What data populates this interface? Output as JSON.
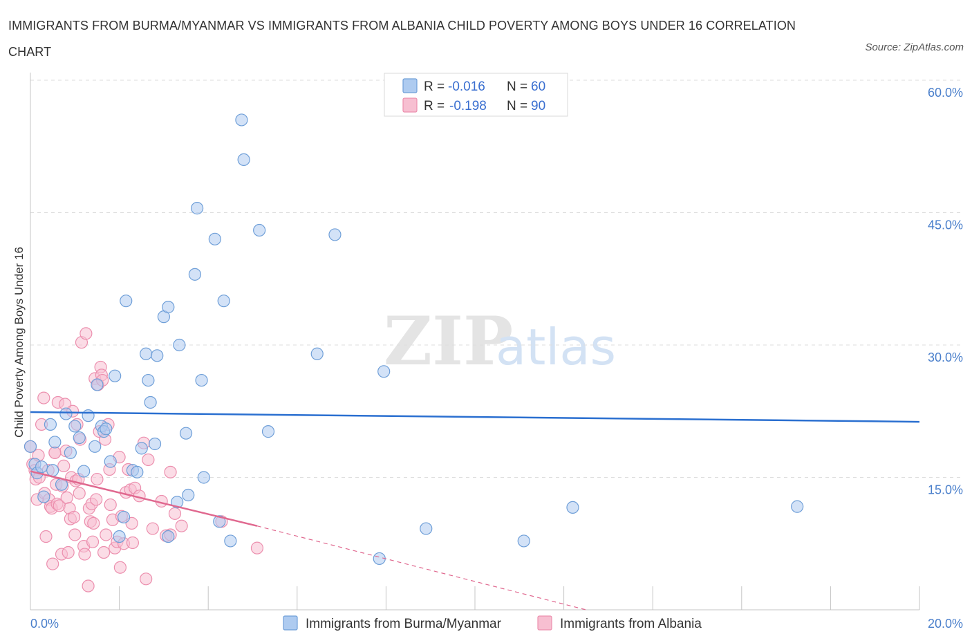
{
  "title": "IMMIGRANTS FROM BURMA/MYANMAR VS IMMIGRANTS FROM ALBANIA CHILD POVERTY AMONG BOYS UNDER 16 CORRELATION CHART",
  "source": "Source: ZipAtlas.com",
  "watermark": {
    "zip": "ZIP",
    "atlas": "atlas"
  },
  "colors": {
    "burma_fill": "#aecbf0",
    "burma_stroke": "#6f9fd8",
    "burma_line": "#2a6fd0",
    "albania_fill": "#f7bfd1",
    "albania_stroke": "#ec8fae",
    "albania_line": "#e0688f",
    "grid": "#dedede",
    "tick_text": "#4a7fcb"
  },
  "legend": {
    "rows": [
      {
        "r_label": "R = ",
        "r_value": "-0.016",
        "n_label": "N = ",
        "n_value": "60"
      },
      {
        "r_label": "R = ",
        "r_value": "-0.198",
        "n_label": "N = ",
        "n_value": "90"
      }
    ]
  },
  "chart_data": {
    "type": "scatter",
    "title": "IMMIGRANTS FROM BURMA/MYANMAR VS IMMIGRANTS FROM ALBANIA CHILD POVERTY AMONG BOYS UNDER 16 CORRELATION CHART",
    "xlabel": "",
    "ylabel": "Child Poverty Among Boys Under 16",
    "xlim": [
      0,
      20
    ],
    "ylim": [
      0,
      60
    ],
    "x_tick_labels": [
      "0.0%",
      "20.0%"
    ],
    "y_ticks": [
      15,
      30,
      45,
      60
    ],
    "y_tick_labels": [
      "15.0%",
      "30.0%",
      "45.0%",
      "60.0%"
    ],
    "grid": true,
    "legend_position": "top-center",
    "series": [
      {
        "name": "Immigrants from Burma/Myanmar",
        "R": -0.016,
        "N": 60,
        "trend": {
          "x": [
            0,
            20
          ],
          "y": [
            22.4,
            21.3
          ],
          "dashed_extension": false
        },
        "points": [
          [
            0.0,
            18.5
          ],
          [
            0.1,
            16.5
          ],
          [
            0.15,
            15.5
          ],
          [
            0.25,
            16.2
          ],
          [
            0.3,
            12.8
          ],
          [
            0.45,
            21.0
          ],
          [
            0.5,
            15.8
          ],
          [
            0.55,
            19.0
          ],
          [
            0.7,
            14.2
          ],
          [
            0.8,
            22.2
          ],
          [
            0.9,
            17.8
          ],
          [
            1.0,
            20.8
          ],
          [
            1.1,
            19.5
          ],
          [
            1.2,
            15.7
          ],
          [
            1.3,
            22.0
          ],
          [
            1.45,
            18.5
          ],
          [
            1.5,
            25.5
          ],
          [
            1.6,
            20.8
          ],
          [
            1.65,
            20.2
          ],
          [
            1.8,
            16.8
          ],
          [
            1.9,
            26.5
          ],
          [
            2.0,
            8.3
          ],
          [
            2.1,
            10.5
          ],
          [
            2.15,
            35.0
          ],
          [
            2.3,
            15.8
          ],
          [
            2.4,
            15.6
          ],
          [
            2.5,
            18.3
          ],
          [
            2.6,
            29.0
          ],
          [
            2.65,
            26.0
          ],
          [
            2.7,
            23.5
          ],
          [
            2.8,
            18.8
          ],
          [
            2.85,
            28.8
          ],
          [
            3.0,
            33.2
          ],
          [
            3.1,
            34.3
          ],
          [
            3.1,
            8.3
          ],
          [
            3.3,
            12.2
          ],
          [
            3.35,
            30.0
          ],
          [
            3.5,
            20.0
          ],
          [
            3.55,
            13.0
          ],
          [
            3.7,
            38.0
          ],
          [
            3.75,
            45.5
          ],
          [
            3.85,
            26.0
          ],
          [
            3.9,
            15.0
          ],
          [
            4.15,
            42.0
          ],
          [
            4.25,
            10.0
          ],
          [
            4.35,
            35.0
          ],
          [
            4.5,
            7.8
          ],
          [
            4.75,
            55.5
          ],
          [
            4.8,
            51.0
          ],
          [
            5.15,
            43.0
          ],
          [
            5.35,
            20.2
          ],
          [
            6.45,
            29.0
          ],
          [
            6.85,
            42.5
          ],
          [
            7.85,
            5.8
          ],
          [
            7.95,
            27.0
          ],
          [
            8.9,
            9.2
          ],
          [
            11.1,
            7.8
          ],
          [
            12.2,
            11.6
          ],
          [
            17.25,
            11.7
          ],
          [
            1.7,
            20.5
          ]
        ]
      },
      {
        "name": "Immigrants from Albania",
        "R": -0.198,
        "N": 90,
        "trend": {
          "x": [
            0,
            5.1
          ],
          "y": [
            15.7,
            9.5
          ],
          "dashed_extension": {
            "x": [
              5.1,
              12.5
            ],
            "y": [
              9.5,
              0.0
            ]
          }
        },
        "points": [
          [
            0.0,
            18.5
          ],
          [
            0.05,
            16.5
          ],
          [
            0.1,
            15.8
          ],
          [
            0.12,
            14.8
          ],
          [
            0.15,
            12.5
          ],
          [
            0.18,
            17.5
          ],
          [
            0.2,
            15.0
          ],
          [
            0.25,
            21.0
          ],
          [
            0.3,
            24.0
          ],
          [
            0.32,
            13.2
          ],
          [
            0.35,
            8.3
          ],
          [
            0.4,
            15.8
          ],
          [
            0.42,
            12.5
          ],
          [
            0.45,
            11.7
          ],
          [
            0.48,
            11.5
          ],
          [
            0.5,
            5.2
          ],
          [
            0.55,
            17.8
          ],
          [
            0.58,
            14.2
          ],
          [
            0.6,
            12.0
          ],
          [
            0.62,
            23.5
          ],
          [
            0.65,
            11.8
          ],
          [
            0.7,
            6.3
          ],
          [
            0.72,
            14.0
          ],
          [
            0.75,
            16.3
          ],
          [
            0.78,
            23.3
          ],
          [
            0.8,
            18.0
          ],
          [
            0.82,
            12.7
          ],
          [
            0.85,
            6.5
          ],
          [
            0.88,
            11.5
          ],
          [
            0.9,
            10.3
          ],
          [
            0.92,
            15.0
          ],
          [
            0.95,
            22.5
          ],
          [
            0.98,
            10.5
          ],
          [
            1.0,
            8.5
          ],
          [
            1.02,
            14.6
          ],
          [
            1.05,
            21.0
          ],
          [
            1.08,
            14.8
          ],
          [
            1.1,
            13.2
          ],
          [
            1.12,
            19.3
          ],
          [
            1.15,
            30.3
          ],
          [
            1.2,
            7.2
          ],
          [
            1.22,
            6.3
          ],
          [
            1.25,
            31.3
          ],
          [
            1.3,
            2.7
          ],
          [
            1.32,
            11.5
          ],
          [
            1.35,
            10.0
          ],
          [
            1.38,
            12.0
          ],
          [
            1.4,
            7.7
          ],
          [
            1.42,
            9.8
          ],
          [
            1.45,
            26.2
          ],
          [
            1.48,
            12.5
          ],
          [
            1.5,
            14.8
          ],
          [
            1.52,
            25.5
          ],
          [
            1.55,
            20.2
          ],
          [
            1.58,
            27.5
          ],
          [
            1.6,
            26.6
          ],
          [
            1.62,
            26.0
          ],
          [
            1.65,
            6.5
          ],
          [
            1.68,
            19.3
          ],
          [
            1.7,
            8.5
          ],
          [
            1.75,
            21.0
          ],
          [
            1.78,
            15.9
          ],
          [
            1.8,
            11.9
          ],
          [
            1.85,
            10.2
          ],
          [
            1.9,
            7.0
          ],
          [
            1.95,
            7.7
          ],
          [
            2.0,
            17.3
          ],
          [
            2.02,
            4.8
          ],
          [
            2.05,
            10.6
          ],
          [
            2.1,
            7.5
          ],
          [
            2.15,
            13.3
          ],
          [
            2.2,
            15.9
          ],
          [
            2.25,
            13.6
          ],
          [
            2.28,
            9.8
          ],
          [
            2.3,
            7.6
          ],
          [
            2.35,
            13.8
          ],
          [
            2.45,
            12.9
          ],
          [
            2.55,
            18.9
          ],
          [
            2.6,
            3.5
          ],
          [
            2.65,
            17.0
          ],
          [
            2.75,
            9.2
          ],
          [
            2.95,
            12.3
          ],
          [
            3.05,
            8.4
          ],
          [
            3.15,
            15.6
          ],
          [
            3.25,
            10.9
          ],
          [
            3.4,
            9.5
          ],
          [
            3.15,
            8.5
          ],
          [
            4.3,
            10.0
          ],
          [
            5.1,
            7.0
          ],
          [
            0.55,
            17.8
          ]
        ]
      }
    ]
  },
  "bottom_legend": [
    "Immigrants from Burma/Myanmar",
    "Immigrants from Albania"
  ]
}
